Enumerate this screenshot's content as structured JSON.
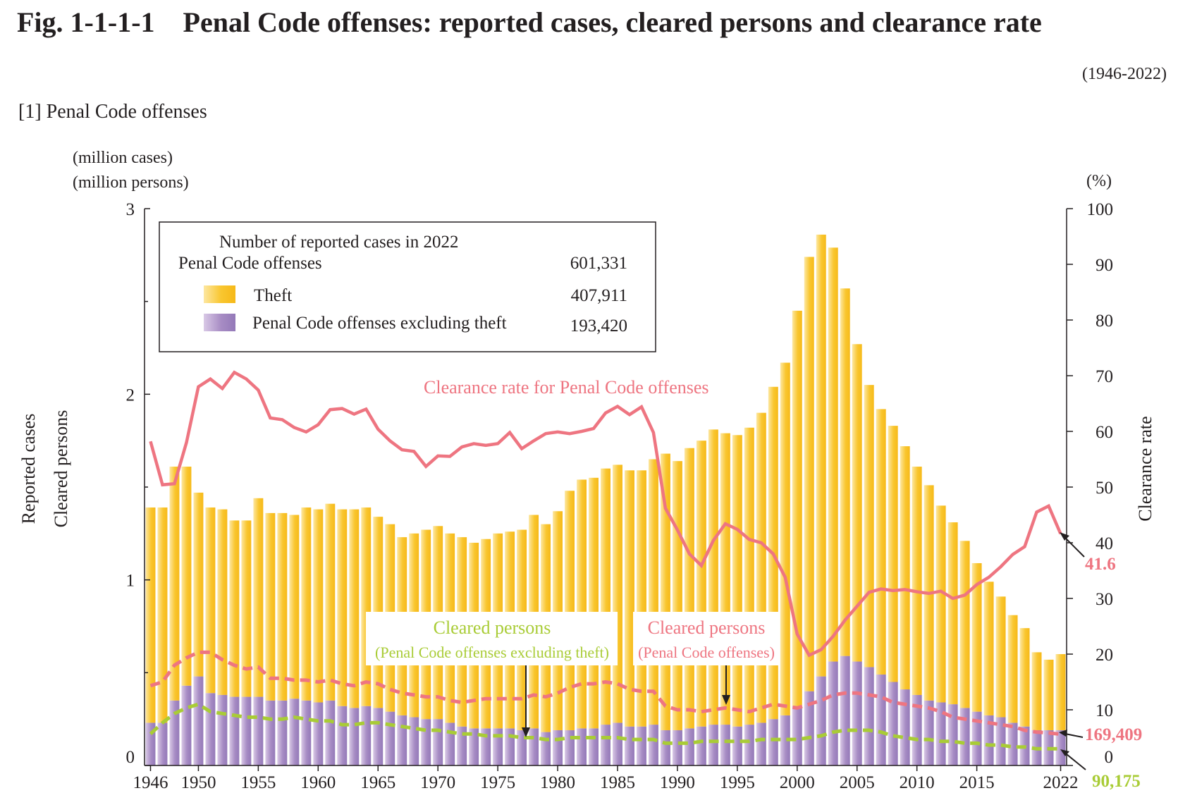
{
  "figure_title": "Fig. 1-1-1-1    Penal Code offenses: reported cases, cleared persons and clearance rate",
  "period": "(1946-2022)",
  "panel_title": "[1] Penal Code offenses",
  "colors": {
    "theft": "#f9c62f",
    "non_theft": "#a78cc4",
    "clearance_rate": "#ee7581",
    "cleared_persons_all": "#ee7581",
    "cleared_persons_non_theft": "#a9cc36",
    "axis": "#231f20"
  },
  "legend": {
    "header": "Number of reported cases in 2022",
    "total_label": "Penal Code offenses",
    "total_value": "601,331",
    "theft_label": "Theft",
    "theft_value": "407,911",
    "non_theft_label": "Penal Code offenses excluding theft",
    "non_theft_value": "193,420"
  },
  "annotations": {
    "clearance_rate_label": "Clearance rate for Penal Code offenses",
    "cp_non_theft_title": "Cleared persons",
    "cp_non_theft_sub": "(Penal Code offenses excluding theft)",
    "cp_all_title": "Cleared persons",
    "cp_all_sub": "(Penal Code offenses)",
    "end_rate": "41.6",
    "end_cp_all": "169,409",
    "end_cp_non_theft": "90,175"
  },
  "chart_data": {
    "type": "bar",
    "x": [
      1946,
      1947,
      1948,
      1949,
      1950,
      1951,
      1952,
      1953,
      1954,
      1955,
      1956,
      1957,
      1958,
      1959,
      1960,
      1961,
      1962,
      1963,
      1964,
      1965,
      1966,
      1967,
      1968,
      1969,
      1970,
      1971,
      1972,
      1973,
      1974,
      1975,
      1976,
      1977,
      1978,
      1979,
      1980,
      1981,
      1982,
      1983,
      1984,
      1985,
      1986,
      1987,
      1988,
      1989,
      1990,
      1991,
      1992,
      1993,
      1994,
      1995,
      1996,
      1997,
      1998,
      1999,
      2000,
      2001,
      2002,
      2003,
      2004,
      2005,
      2006,
      2007,
      2008,
      2009,
      2010,
      2011,
      2012,
      2013,
      2014,
      2015,
      2016,
      2017,
      2018,
      2019,
      2020,
      2021,
      2022
    ],
    "x_ticks": [
      "1946",
      "1950",
      "1955",
      "1960",
      "1965",
      "1970",
      "1975",
      "1980",
      "1985",
      "1990",
      "1995",
      "2000",
      "2005",
      "2010",
      "2015",
      "2022"
    ],
    "y_left": {
      "labels": [
        "(million cases)",
        "(million persons)"
      ],
      "axis_title_1": "Reported cases",
      "axis_title_2": "Cleared persons",
      "range": [
        0,
        3
      ],
      "ticks": [
        "0",
        "1",
        "2",
        "3"
      ]
    },
    "y_right": {
      "label": "(%)",
      "axis_title": "Clearance rate",
      "range": [
        0,
        100
      ],
      "ticks": [
        "0",
        "10",
        "20",
        "30",
        "40",
        "50",
        "60",
        "70",
        "80",
        "90",
        "100"
      ]
    },
    "series": [
      {
        "name": "Theft",
        "kind": "bar-stacked-top",
        "values": [
          1.16,
          1.16,
          1.26,
          1.18,
          0.99,
          1.0,
          1.0,
          0.95,
          0.95,
          1.07,
          1.01,
          1.01,
          0.99,
          1.04,
          1.04,
          1.06,
          1.06,
          1.07,
          1.07,
          1.03,
          1.01,
          0.96,
          0.99,
          1.02,
          1.04,
          1.02,
          1.02,
          1.0,
          1.02,
          1.05,
          1.06,
          1.08,
          1.15,
          1.12,
          1.18,
          1.29,
          1.34,
          1.35,
          1.38,
          1.39,
          1.38,
          1.38,
          1.43,
          1.49,
          1.45,
          1.51,
          1.54,
          1.59,
          1.57,
          1.57,
          1.6,
          1.67,
          1.79,
          1.9,
          2.13,
          2.34,
          2.38,
          2.23,
          1.98,
          1.71,
          1.52,
          1.43,
          1.38,
          1.31,
          1.23,
          1.16,
          1.06,
          0.98,
          0.9,
          0.8,
          0.72,
          0.65,
          0.58,
          0.53,
          0.42,
          0.38,
          0.41
        ]
      },
      {
        "name": "Penal Code offenses excluding theft",
        "kind": "bar-stacked-bottom",
        "values": [
          0.23,
          0.23,
          0.35,
          0.43,
          0.48,
          0.39,
          0.38,
          0.37,
          0.37,
          0.37,
          0.35,
          0.35,
          0.36,
          0.35,
          0.34,
          0.35,
          0.32,
          0.31,
          0.32,
          0.31,
          0.29,
          0.27,
          0.26,
          0.25,
          0.25,
          0.23,
          0.21,
          0.2,
          0.2,
          0.2,
          0.2,
          0.19,
          0.2,
          0.18,
          0.19,
          0.19,
          0.2,
          0.2,
          0.22,
          0.23,
          0.21,
          0.21,
          0.22,
          0.19,
          0.19,
          0.2,
          0.21,
          0.22,
          0.22,
          0.21,
          0.22,
          0.23,
          0.25,
          0.27,
          0.32,
          0.4,
          0.48,
          0.56,
          0.59,
          0.56,
          0.53,
          0.49,
          0.45,
          0.41,
          0.38,
          0.35,
          0.34,
          0.33,
          0.31,
          0.29,
          0.27,
          0.26,
          0.23,
          0.21,
          0.19,
          0.19,
          0.19
        ]
      },
      {
        "name": "Clearance rate for Penal Code offenses",
        "kind": "line-right",
        "values": [
          58.2,
          50.4,
          50.6,
          58.0,
          68.0,
          69.4,
          67.7,
          70.6,
          69.4,
          67.4,
          62.4,
          62.1,
          60.7,
          59.9,
          61.2,
          63.9,
          64.1,
          63.1,
          64.0,
          60.4,
          58.3,
          56.7,
          56.4,
          53.7,
          55.6,
          55.5,
          57.2,
          57.8,
          57.5,
          57.8,
          59.8,
          56.9,
          58.3,
          59.6,
          59.9,
          59.6,
          60.0,
          60.5,
          63.3,
          64.5,
          63.0,
          64.4,
          59.8,
          46.2,
          42.3,
          38.0,
          35.9,
          40.4,
          43.4,
          42.4,
          40.6,
          40.0,
          38.0,
          33.8,
          23.6,
          19.8,
          20.8,
          23.2,
          26.1,
          28.6,
          31.1,
          31.7,
          31.4,
          31.6,
          31.2,
          30.9,
          31.3,
          30.0,
          30.6,
          32.5,
          33.8,
          35.7,
          37.9,
          39.3,
          45.5,
          46.6,
          41.6
        ]
      },
      {
        "name": "Cleared persons (Penal Code offenses)",
        "kind": "line-dashed-left",
        "values": [
          0.43,
          0.45,
          0.54,
          0.58,
          0.61,
          0.61,
          0.57,
          0.54,
          0.52,
          0.53,
          0.47,
          0.47,
          0.46,
          0.46,
          0.45,
          0.46,
          0.44,
          0.43,
          0.45,
          0.44,
          0.41,
          0.39,
          0.38,
          0.37,
          0.37,
          0.35,
          0.34,
          0.35,
          0.36,
          0.36,
          0.36,
          0.36,
          0.38,
          0.37,
          0.39,
          0.42,
          0.44,
          0.44,
          0.45,
          0.44,
          0.41,
          0.4,
          0.4,
          0.32,
          0.3,
          0.3,
          0.29,
          0.3,
          0.31,
          0.3,
          0.29,
          0.31,
          0.33,
          0.32,
          0.31,
          0.33,
          0.35,
          0.38,
          0.39,
          0.39,
          0.38,
          0.37,
          0.34,
          0.33,
          0.32,
          0.31,
          0.29,
          0.26,
          0.25,
          0.24,
          0.23,
          0.22,
          0.21,
          0.19,
          0.18,
          0.175,
          0.169
        ]
      },
      {
        "name": "Cleared persons (Penal Code offenses excluding theft)",
        "kind": "line-dashed-left",
        "values": [
          0.17,
          0.23,
          0.28,
          0.31,
          0.33,
          0.29,
          0.28,
          0.27,
          0.26,
          0.26,
          0.25,
          0.25,
          0.26,
          0.25,
          0.24,
          0.24,
          0.22,
          0.22,
          0.23,
          0.23,
          0.22,
          0.21,
          0.2,
          0.19,
          0.19,
          0.18,
          0.17,
          0.17,
          0.16,
          0.16,
          0.16,
          0.15,
          0.15,
          0.14,
          0.14,
          0.15,
          0.15,
          0.15,
          0.15,
          0.15,
          0.14,
          0.14,
          0.14,
          0.12,
          0.12,
          0.12,
          0.13,
          0.13,
          0.13,
          0.13,
          0.13,
          0.14,
          0.14,
          0.14,
          0.14,
          0.15,
          0.16,
          0.18,
          0.19,
          0.19,
          0.19,
          0.18,
          0.16,
          0.15,
          0.14,
          0.14,
          0.13,
          0.13,
          0.12,
          0.12,
          0.11,
          0.11,
          0.1,
          0.1,
          0.09,
          0.09,
          0.09
        ]
      }
    ],
    "grid": false,
    "legend_position": "top-left"
  }
}
